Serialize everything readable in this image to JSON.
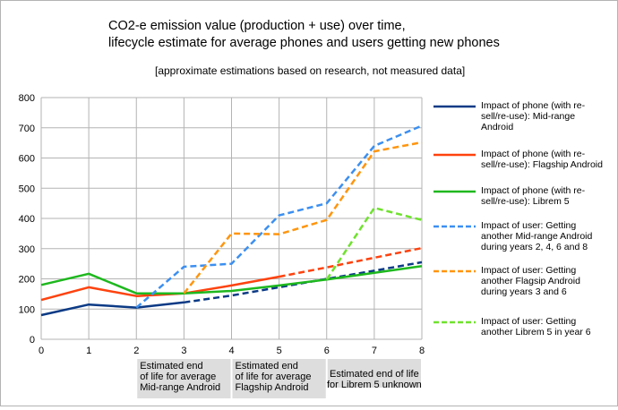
{
  "colors": {
    "midrange": "#0b3a85",
    "flagship": "#ff420e",
    "librem": "#1eb81e",
    "user_midrange": "#3c8ff0",
    "user_flagship": "#ff950e",
    "user_librem": "#6fe22e",
    "grid": "#b3b3b3",
    "annotation_bg": "#dddddd"
  },
  "chart_data": {
    "type": "line",
    "title": "CO2-e emission value (production + use) over time,",
    "title_line2": "lifecycle estimate for average phones and users getting new phones",
    "subtitle": "[approximate estimations based on research, not measured data]",
    "xlabel": "",
    "ylabel": "",
    "x": [
      0,
      1,
      2,
      3,
      4,
      5,
      6,
      7,
      8
    ],
    "xlim": [
      0,
      8
    ],
    "ylim": [
      0,
      800
    ],
    "y_ticks": [
      0,
      100,
      200,
      300,
      400,
      500,
      600,
      700,
      800
    ],
    "grid": true,
    "legend_position": "right",
    "series": [
      {
        "name": "Impact of phone (with re-sell/re-use): Mid-range Android",
        "legend_lines": [
          "Impact of phone (with re-",
          "sell/re-use): Mid-range",
          "Android"
        ],
        "color_key": "midrange",
        "style": "solid-then-dashed",
        "dash_from_x": 3,
        "x": [
          0,
          1,
          2,
          3,
          4,
          5,
          6,
          7,
          8
        ],
        "values": [
          80,
          115,
          105,
          122,
          145,
          172,
          200,
          227,
          255
        ]
      },
      {
        "name": "Impact of phone (with re-sell/re-use): Flagship Android",
        "legend_lines": [
          "Impact of phone (with re-",
          "sell/re-use): Flagship Android"
        ],
        "color_key": "flagship",
        "style": "solid-then-dashed",
        "dash_from_x": 5,
        "x": [
          0,
          1,
          2,
          3,
          4,
          5,
          6,
          7,
          8
        ],
        "values": [
          130,
          172,
          143,
          152,
          178,
          207,
          238,
          270,
          302
        ]
      },
      {
        "name": "Impact of phone (with re-sell/re-use): Librem 5",
        "legend_lines": [
          "Impact of phone  (with re-",
          "sell/re-use): Librem 5"
        ],
        "color_key": "librem",
        "style": "solid",
        "x": [
          0,
          1,
          2,
          3,
          4,
          5,
          6,
          7,
          8
        ],
        "values": [
          180,
          217,
          152,
          152,
          160,
          178,
          198,
          220,
          242
        ]
      },
      {
        "name": "Impact of user: Getting another Mid-range Android during years 2, 4, 6 and 8",
        "legend_lines": [
          "Impact of user: Getting",
          "another Mid-range Android",
          "during years 2, 4, 6 and 8"
        ],
        "color_key": "user_midrange",
        "style": "dashed",
        "x": [
          2,
          3,
          4,
          5,
          6,
          7,
          8
        ],
        "values": [
          105,
          240,
          250,
          410,
          450,
          640,
          707
        ]
      },
      {
        "name": "Impact of user: Getting another Flagsip Android during years 3 and 6",
        "legend_lines": [
          "Impact of user: Getting",
          "another Flagsip Android",
          "during years 3 and 6"
        ],
        "color_key": "user_flagship",
        "style": "dashed",
        "x": [
          3,
          4,
          5,
          6,
          7,
          8
        ],
        "values": [
          152,
          350,
          348,
          395,
          622,
          652
        ]
      },
      {
        "name": "Impact of user: Getting another Librem 5 in year 6",
        "legend_lines": [
          "Impact of user: Getting",
          "another Librem 5 in year 6"
        ],
        "color_key": "user_librem",
        "style": "dashed",
        "x": [
          6,
          7,
          8
        ],
        "values": [
          198,
          435,
          395
        ]
      }
    ],
    "annotations": [
      {
        "x_start": 2,
        "x_end": 4,
        "lines": [
          "Estimated end",
          "of life for average",
          "Mid-range Android"
        ]
      },
      {
        "x_start": 4,
        "x_end": 6,
        "lines": [
          "Estimated end",
          "of life for average",
          "Flagship Android"
        ]
      },
      {
        "x_start": 6,
        "x_end": 8,
        "lines": [
          "Estimated end of life",
          "for Librem 5 unknown"
        ]
      }
    ]
  }
}
